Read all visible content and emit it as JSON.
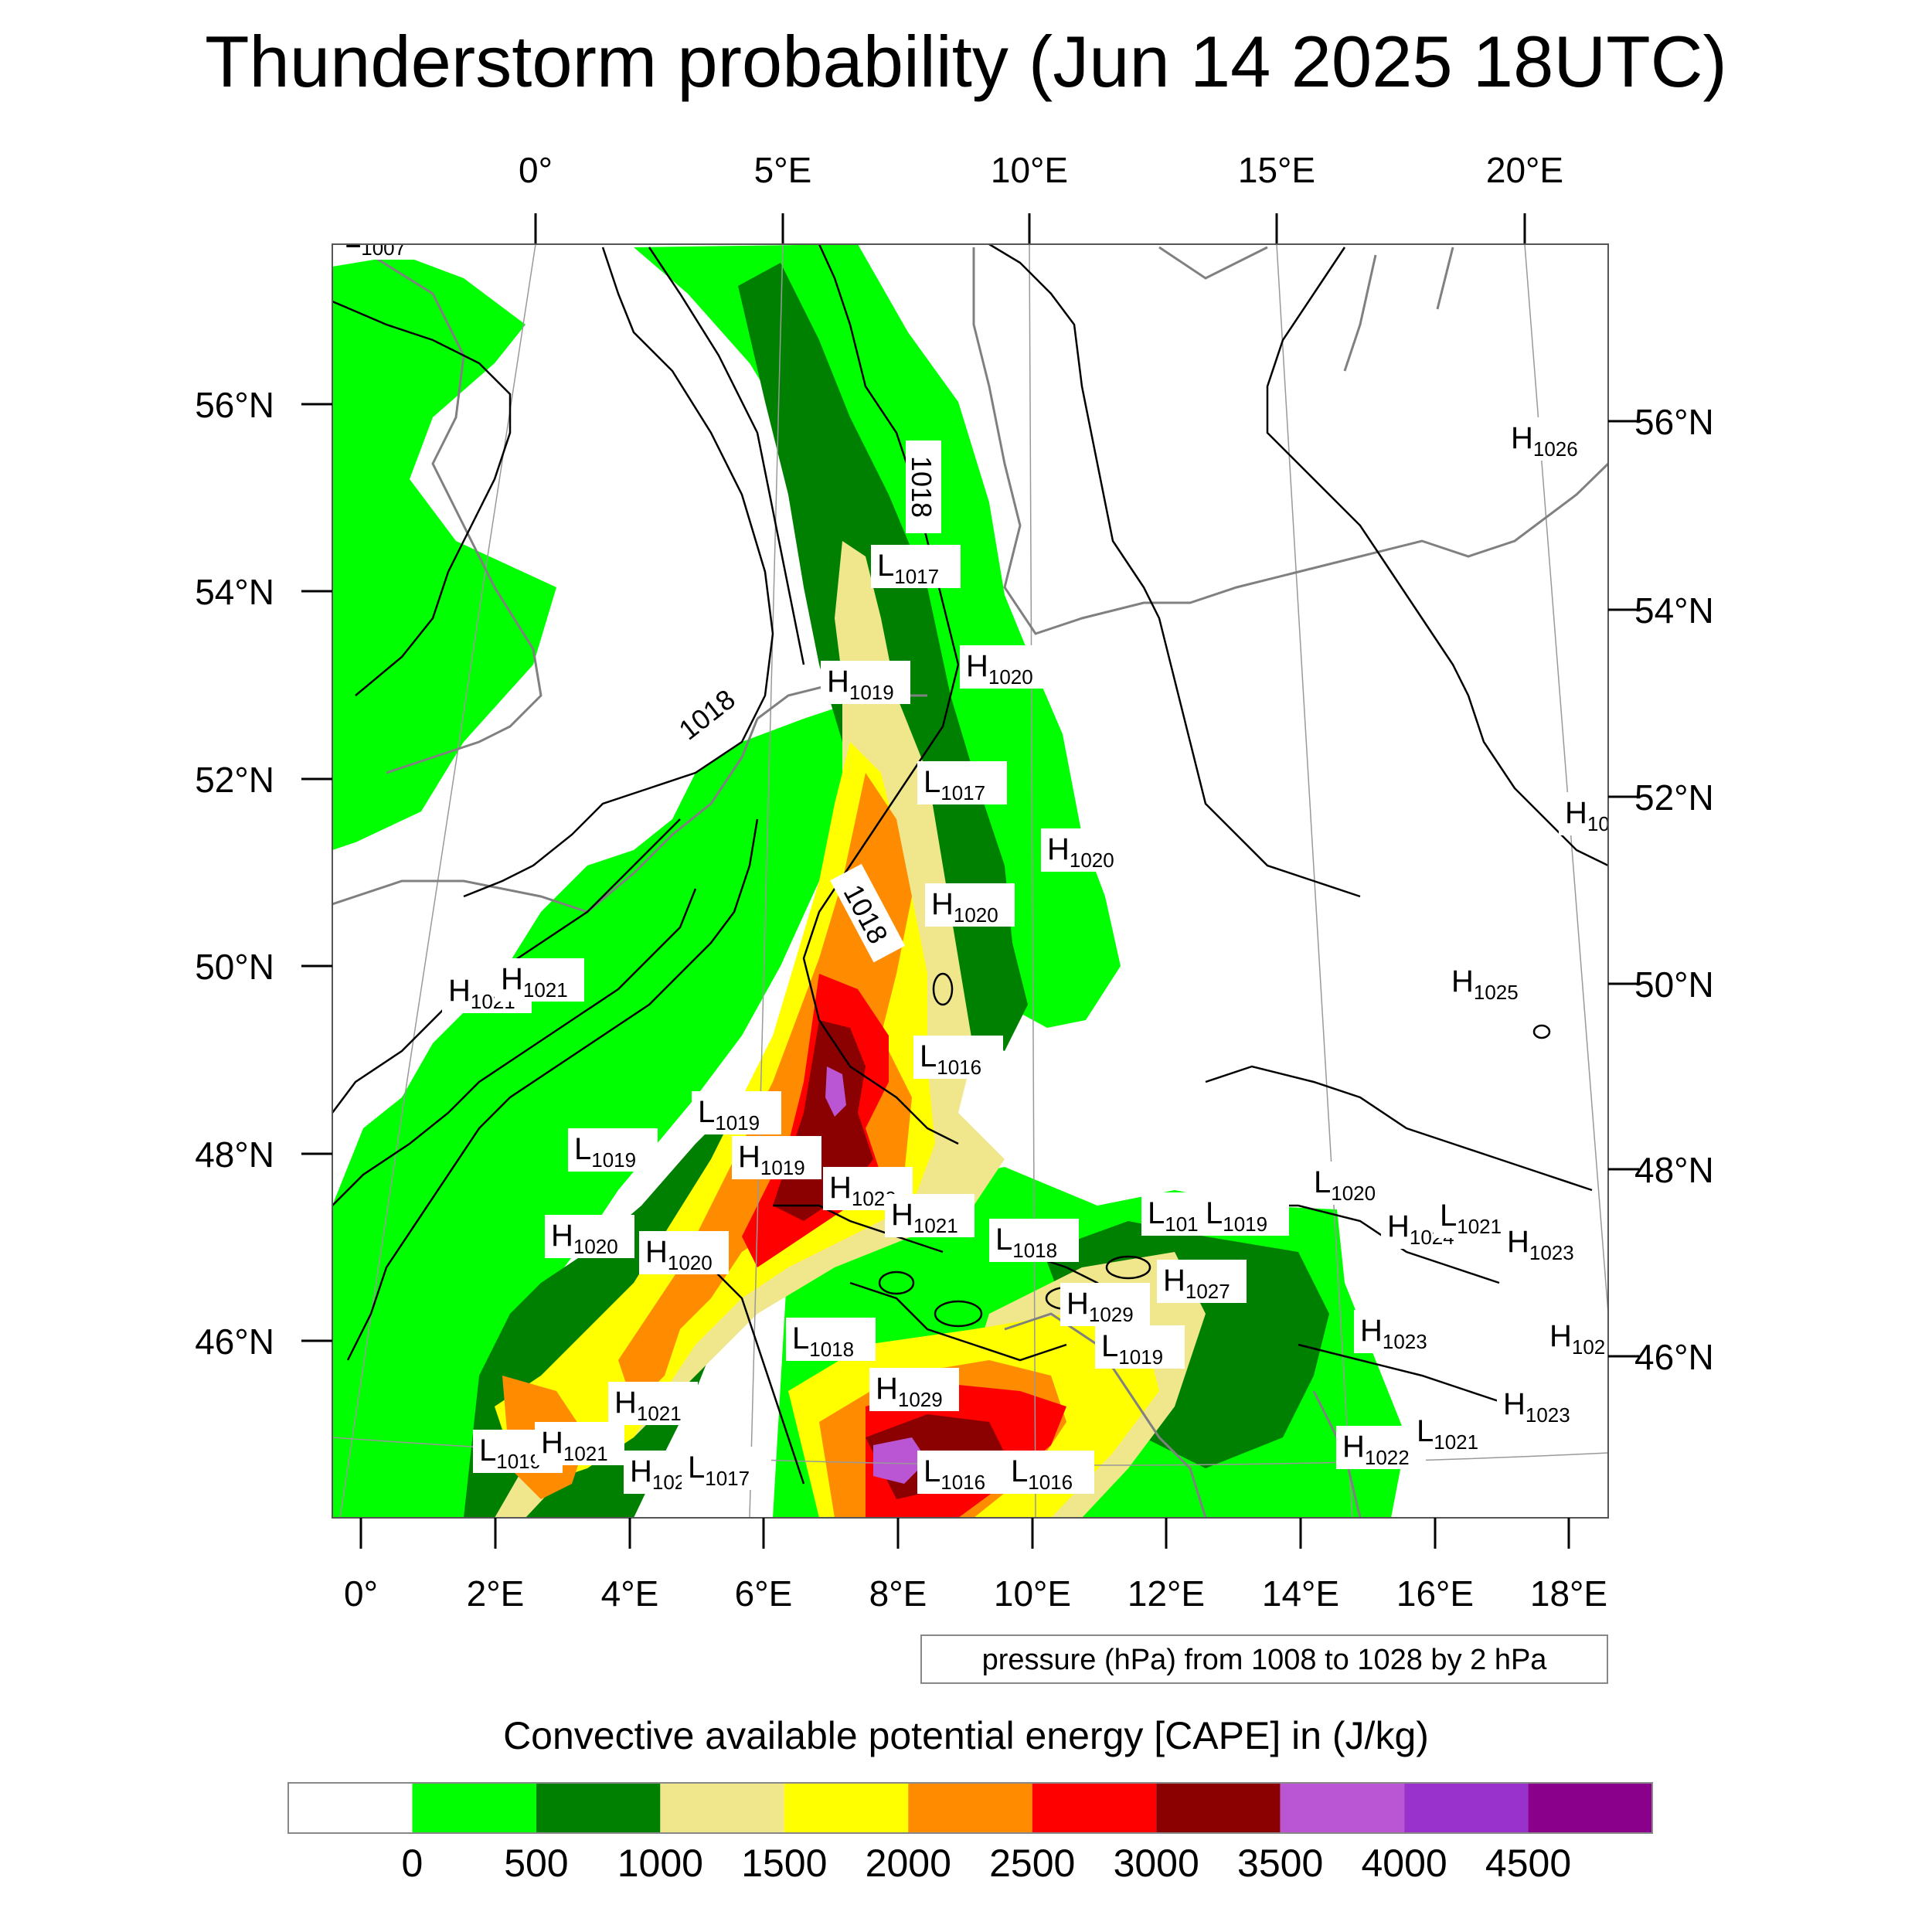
{
  "title": "Thunderstorm probability (Jun 14 2025 18UTC)",
  "top_lon_labels": [
    "0°",
    "5°E",
    "10°E",
    "15°E",
    "20°E"
  ],
  "bottom_lon_labels": [
    "0°",
    "2°E",
    "4°E",
    "6°E",
    "8°E",
    "10°E",
    "12°E",
    "14°E",
    "16°E",
    "18°E"
  ],
  "left_lat_labels": [
    "56°N",
    "54°N",
    "52°N",
    "50°N",
    "48°N",
    "46°N"
  ],
  "right_lat_labels": [
    "56°N",
    "54°N",
    "52°N",
    "50°N",
    "48°N",
    "46°N"
  ],
  "pressure_note": "pressure (hPa) from 1008 to 1028 by 2 hPa",
  "isobar_labels": [
    "1018",
    "1018",
    "1018"
  ],
  "pressure_centers": [
    {
      "type": "L",
      "value": "1007"
    },
    {
      "type": "H",
      "value": "1026"
    },
    {
      "type": "L",
      "value": "1017"
    },
    {
      "type": "H",
      "value": "1019"
    },
    {
      "type": "H",
      "value": "1020"
    },
    {
      "type": "L",
      "value": "1017"
    },
    {
      "type": "H",
      "value": "1020"
    },
    {
      "type": "H",
      "value": "1020"
    },
    {
      "type": "H",
      "value": "10"
    },
    {
      "type": "H",
      "value": "1021"
    },
    {
      "type": "H",
      "value": "1021"
    },
    {
      "type": "H",
      "value": "1025"
    },
    {
      "type": "L",
      "value": "1016"
    },
    {
      "type": "L",
      "value": "1019"
    },
    {
      "type": "L",
      "value": "1019"
    },
    {
      "type": "H",
      "value": "1019"
    },
    {
      "type": "H",
      "value": "1020"
    },
    {
      "type": "L",
      "value": "1020"
    },
    {
      "type": "H",
      "value": "1020"
    },
    {
      "type": "H",
      "value": "1021"
    },
    {
      "type": "L",
      "value": "101"
    },
    {
      "type": "L",
      "value": "1019"
    },
    {
      "type": "H",
      "value": "1024"
    },
    {
      "type": "L",
      "value": "1021"
    },
    {
      "type": "H",
      "value": "1023"
    },
    {
      "type": "H",
      "value": "1020"
    },
    {
      "type": "L",
      "value": "1018"
    },
    {
      "type": "H",
      "value": "1027"
    },
    {
      "type": "H",
      "value": "1029"
    },
    {
      "type": "L",
      "value": "1018"
    },
    {
      "type": "L",
      "value": "1019"
    },
    {
      "type": "H",
      "value": "1023"
    },
    {
      "type": "H",
      "value": "102"
    },
    {
      "type": "H",
      "value": "1021"
    },
    {
      "type": "H",
      "value": "1029"
    },
    {
      "type": "H",
      "value": "1023"
    },
    {
      "type": "L",
      "value": "1019"
    },
    {
      "type": "H",
      "value": "1021"
    },
    {
      "type": "H",
      "value": "1021"
    },
    {
      "type": "L",
      "value": "1017"
    },
    {
      "type": "L",
      "value": "1016"
    },
    {
      "type": "L",
      "value": "1016"
    },
    {
      "type": "H",
      "value": "1022"
    },
    {
      "type": "L",
      "value": "1021"
    }
  ],
  "legend": {
    "title": "Convective available potential energy [CAPE] in (J/kg)",
    "colors": [
      "#ffffff",
      "#00ff00",
      "#008000",
      "#f0e68c",
      "#ffff00",
      "#ff8c00",
      "#ff0000",
      "#8b0000",
      "#ba55d3",
      "#9932cc",
      "#8b008b"
    ],
    "tick_labels": [
      "0",
      "500",
      "1000",
      "1500",
      "2000",
      "2500",
      "3000",
      "3500",
      "4000",
      "4500"
    ]
  },
  "colors": {
    "isobar": "#000000",
    "coastline": "#808080",
    "graticule": "#999999",
    "frame": "#555555"
  }
}
